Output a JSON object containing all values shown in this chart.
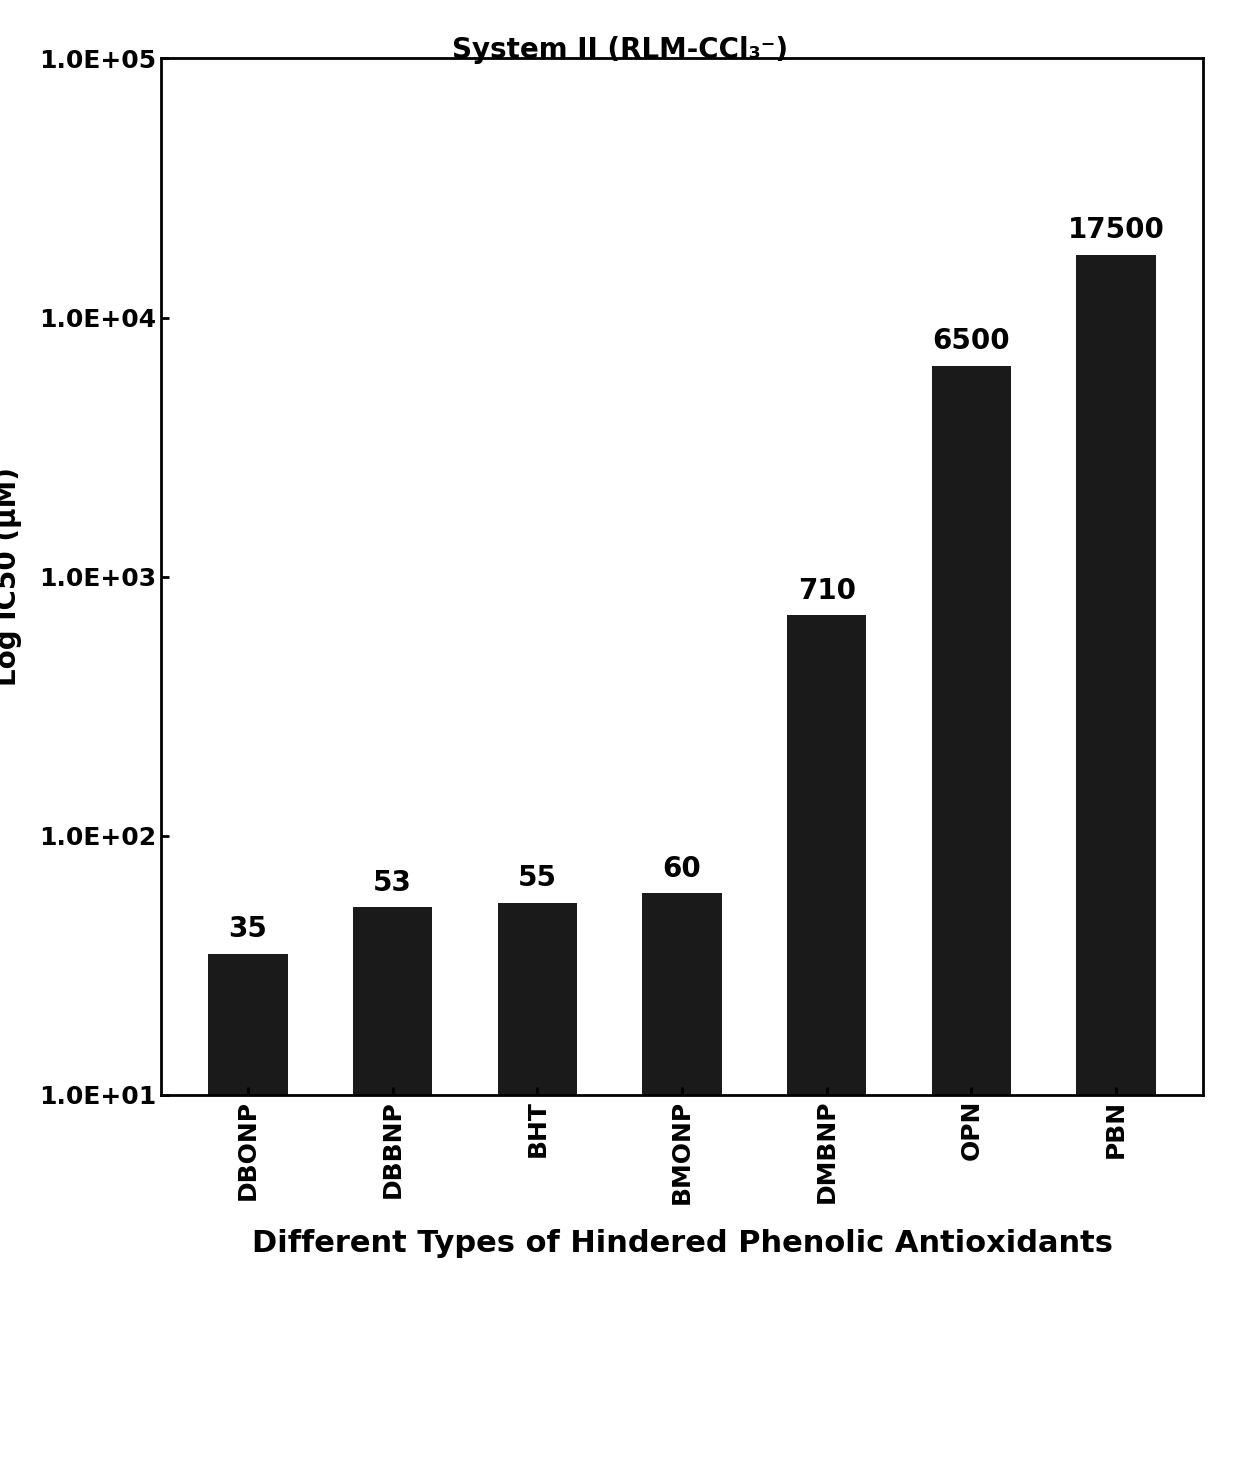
{
  "title": "System II (RLM-CCl₃⁻)",
  "xlabel": "Different Types of Hindered Phenolic Antioxidants",
  "ylabel": "Log IC50 (μM)",
  "categories": [
    "DBONP",
    "DBBNP",
    "BHT",
    "BMONP",
    "DMBNP",
    "OPN",
    "PBN"
  ],
  "values": [
    35,
    53,
    55,
    60,
    710,
    6500,
    17500
  ],
  "bar_color": "#1a1a1a",
  "ylim_min": 10,
  "ylim_max": 100000,
  "yticks": [
    10,
    100,
    1000,
    10000,
    100000
  ],
  "ytick_labels": [
    "1.0E+01",
    "1.0E+02",
    "1.0E+03",
    "1.0E+04",
    "1.0E+05"
  ],
  "bar_width": 0.55,
  "title_fontsize": 20,
  "xlabel_fontsize": 22,
  "ylabel_fontsize": 20,
  "tick_fontsize": 18,
  "annotation_fontsize": 20,
  "background_color": "#ffffff"
}
